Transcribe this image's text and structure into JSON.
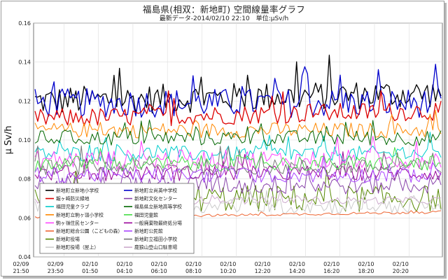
{
  "chart_data": {
    "type": "line",
    "title": "福島県(相双：新地町) 空間線量率グラフ",
    "subtitle": "最新データ-2014/02/10 22:10　単位:μSv/h",
    "ylabel": "μ Sv/h",
    "xlabel": "",
    "ylim": [
      0.04,
      0.16
    ],
    "yticks": [
      "0.16",
      "0.14",
      "0.12",
      "0.10",
      "0.08",
      "0.06",
      "0.04"
    ],
    "xticks": [
      {
        "date": "02/09",
        "time": "21:50"
      },
      {
        "date": "02/09",
        "time": "23:50"
      },
      {
        "date": "02/10",
        "time": "01:50"
      },
      {
        "date": "02/10",
        "time": "04:10"
      },
      {
        "date": "02/10",
        "time": "06:10"
      },
      {
        "date": "02/10",
        "time": "08:10"
      },
      {
        "date": "02/10",
        "time": "10:20"
      },
      {
        "date": "02/10",
        "time": "12:20"
      },
      {
        "date": "02/10",
        "time": "14:20"
      },
      {
        "date": "02/10",
        "time": "16:20"
      },
      {
        "date": "02/10",
        "time": "18:20"
      },
      {
        "date": "02/10",
        "time": "20:20"
      }
    ],
    "grid": true,
    "legend_position": "bottom-left",
    "series": [
      {
        "name": "新地町立新地小学校",
        "color": "#000000",
        "base": 0.12,
        "amp": 0.0075,
        "drift": 0.004
      },
      {
        "name": "新地町立尚英中学校",
        "color": "#0000cc",
        "base": 0.119,
        "amp": 0.0075,
        "drift": 0.0
      },
      {
        "name": "報ヶ崎防災緑地",
        "color": "#dd0000",
        "base": 0.111,
        "amp": 0.005,
        "drift": 0.004
      },
      {
        "name": "新地町立駒ヶ嶺小学校",
        "color": "#ff8800",
        "base": 0.105,
        "amp": 0.004,
        "drift": 0.0
      },
      {
        "name": "福田児童クラブ",
        "color": "#00cccc",
        "base": 0.093,
        "amp": 0.004,
        "drift": 0.0
      },
      {
        "name": "福島県立新地高等学校",
        "color": "#006600",
        "base": 0.101,
        "amp": 0.004,
        "drift": 0.0
      },
      {
        "name": "駒ヶ嶺住民センター",
        "color": "#ff44ff",
        "base": 0.09,
        "amp": 0.005,
        "drift": 0.0
      },
      {
        "name": "一般廃棄物最終処分場",
        "color": "#990099",
        "base": 0.083,
        "amp": 0.004,
        "drift": 0.0
      },
      {
        "name": "新地町役場",
        "color": "#558800",
        "base": 0.07,
        "amp": 0.007,
        "drift": 0.0
      },
      {
        "name": "新地町立福田小学校",
        "color": "#777777",
        "base": 0.086,
        "amp": 0.004,
        "drift": 0.0
      },
      {
        "name": "新地町文化センター",
        "color": "#8844aa",
        "base": 0.077,
        "amp": 0.005,
        "drift": 0.0
      },
      {
        "name": "福田児童館",
        "color": "#44dd44",
        "base": 0.088,
        "amp": 0.004,
        "drift": 0.0
      },
      {
        "name": "新地町総合公園（こどもの森）",
        "color": "#ee6633",
        "base": 0.06,
        "amp": 0.0007,
        "drift": 0.003
      },
      {
        "name": "鹿狼山登山口駐車場",
        "color": "#ccaacc",
        "base": 0.069,
        "amp": 0.002,
        "drift": 0.0
      },
      {
        "name": "新地町役場（屋上）",
        "color": "#cccccc",
        "base": 0.066,
        "amp": 0.004,
        "drift": 0.0
      },
      {
        "name": "新地町公民館",
        "color": "#aa44ff",
        "base": 0.082,
        "amp": 0.004,
        "drift": 0.0
      }
    ],
    "legend": [
      [
        "新地町立新地小学校",
        "新地町立尚英中学校"
      ],
      [
        "報ヶ崎防災緑地",
        "新地町文化センター"
      ],
      [
        "福田児童クラブ",
        "福島県立新地高等学校"
      ],
      [
        "新地町立駒ヶ嶺小学校",
        "福田児童館"
      ],
      [
        "駒ヶ嶺住民センター",
        "一般廃棄物最終処分場"
      ],
      [
        "新地町総合公園（こどもの森）",
        "新地町公民館"
      ],
      [
        "新地町役場",
        "新地町立福田小学校"
      ],
      [
        "新地町役場（屋上）",
        "鹿狼山登山口駐車場"
      ]
    ]
  }
}
